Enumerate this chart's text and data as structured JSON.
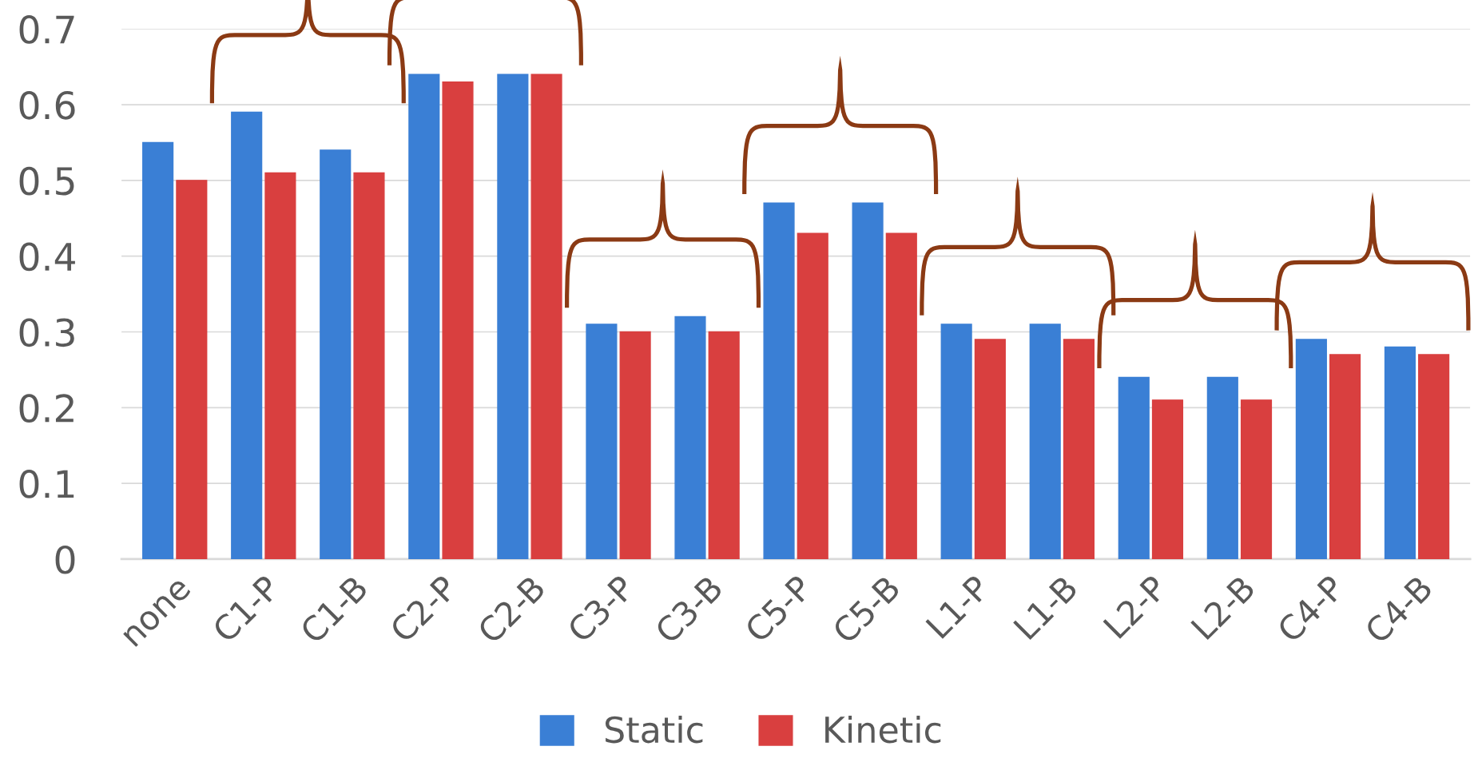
{
  "chart_data": {
    "type": "bar",
    "categories": [
      "none",
      "C1-P",
      "C1-B",
      "C2-P",
      "C2-B",
      "C3-P",
      "C3-B",
      "C5-P",
      "C5-B",
      "L1-P",
      "L1-B",
      "L2-P",
      "L2-B",
      "C4-P",
      "C4-B"
    ],
    "series": [
      {
        "name": "Static",
        "color": "#3a7fd5",
        "values": [
          0.55,
          0.59,
          0.54,
          0.64,
          0.64,
          0.31,
          0.32,
          0.47,
          0.47,
          0.31,
          0.31,
          0.24,
          0.24,
          0.29,
          0.28
        ]
      },
      {
        "name": "Kinetic",
        "color": "#d93f3f",
        "values": [
          0.5,
          0.51,
          0.51,
          0.63,
          0.64,
          0.3,
          0.3,
          0.43,
          0.43,
          0.29,
          0.29,
          0.21,
          0.21,
          0.27,
          0.27
        ]
      }
    ],
    "ylim": [
      0,
      0.7
    ],
    "yticks": [
      0,
      0.1,
      0.2,
      0.3,
      0.4,
      0.5,
      0.6,
      0.7
    ],
    "grid": "y",
    "legend": "bottom"
  }
}
